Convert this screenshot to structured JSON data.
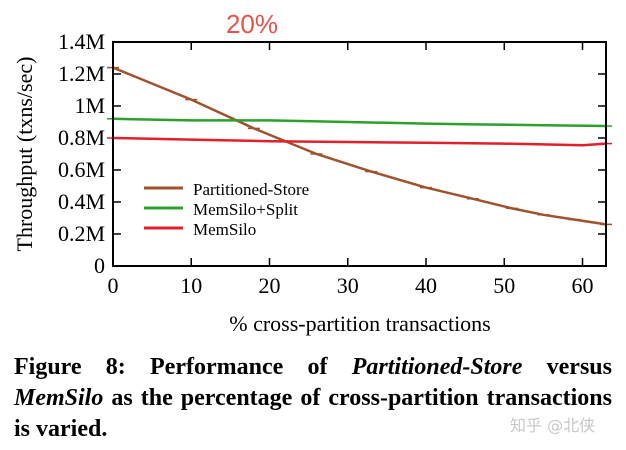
{
  "chart_data": {
    "type": "line",
    "xlabel": "% cross-partition transactions",
    "ylabel": "Throughput (txns/sec)",
    "xlim": [
      0,
      63
    ],
    "ylim": [
      0,
      1400000
    ],
    "xticks": [
      0,
      10,
      20,
      30,
      40,
      50,
      60
    ],
    "xtick_labels": [
      "0",
      "10",
      "20",
      "30",
      "40",
      "50",
      "60"
    ],
    "yticks": [
      0,
      200000,
      400000,
      600000,
      800000,
      1000000,
      1200000,
      1400000
    ],
    "ytick_labels": [
      "0",
      "0.2M",
      "0.4M",
      "0.6M",
      "0.8M",
      "1M",
      "1.2M",
      "1.4M"
    ],
    "grid": false,
    "legend_placement": "lower-left",
    "annotation": "20%",
    "annotation_color": "#e8534a",
    "series": [
      {
        "name": "Partitioned-Store",
        "color": "#a0522d",
        "x": [
          0,
          10,
          18,
          26,
          33,
          40,
          46,
          51,
          55,
          59,
          63
        ],
        "y": [
          1240000,
          1040000,
          860000,
          700000,
          590000,
          490000,
          420000,
          360000,
          320000,
          290000,
          260000
        ]
      },
      {
        "name": "MemSilo+Split",
        "color": "#2ca02c",
        "x": [
          0,
          10,
          20,
          30,
          40,
          46,
          55,
          63
        ],
        "y": [
          920000,
          910000,
          910000,
          900000,
          890000,
          885000,
          880000,
          875000
        ]
      },
      {
        "name": "MemSilo",
        "color": "#e0202a",
        "x": [
          0,
          10,
          20,
          30,
          40,
          50,
          60,
          63
        ],
        "y": [
          800000,
          790000,
          780000,
          775000,
          770000,
          765000,
          755000,
          765000
        ]
      }
    ]
  },
  "caption": {
    "label": "Figure 8:",
    "t1": " Performance of ",
    "i1": "Partitioned-Store",
    "t2": " versus ",
    "i2": "MemSilo",
    "t3": " as the percentage of cross-partition transactions is varied."
  },
  "watermark": "知乎 @北侠"
}
